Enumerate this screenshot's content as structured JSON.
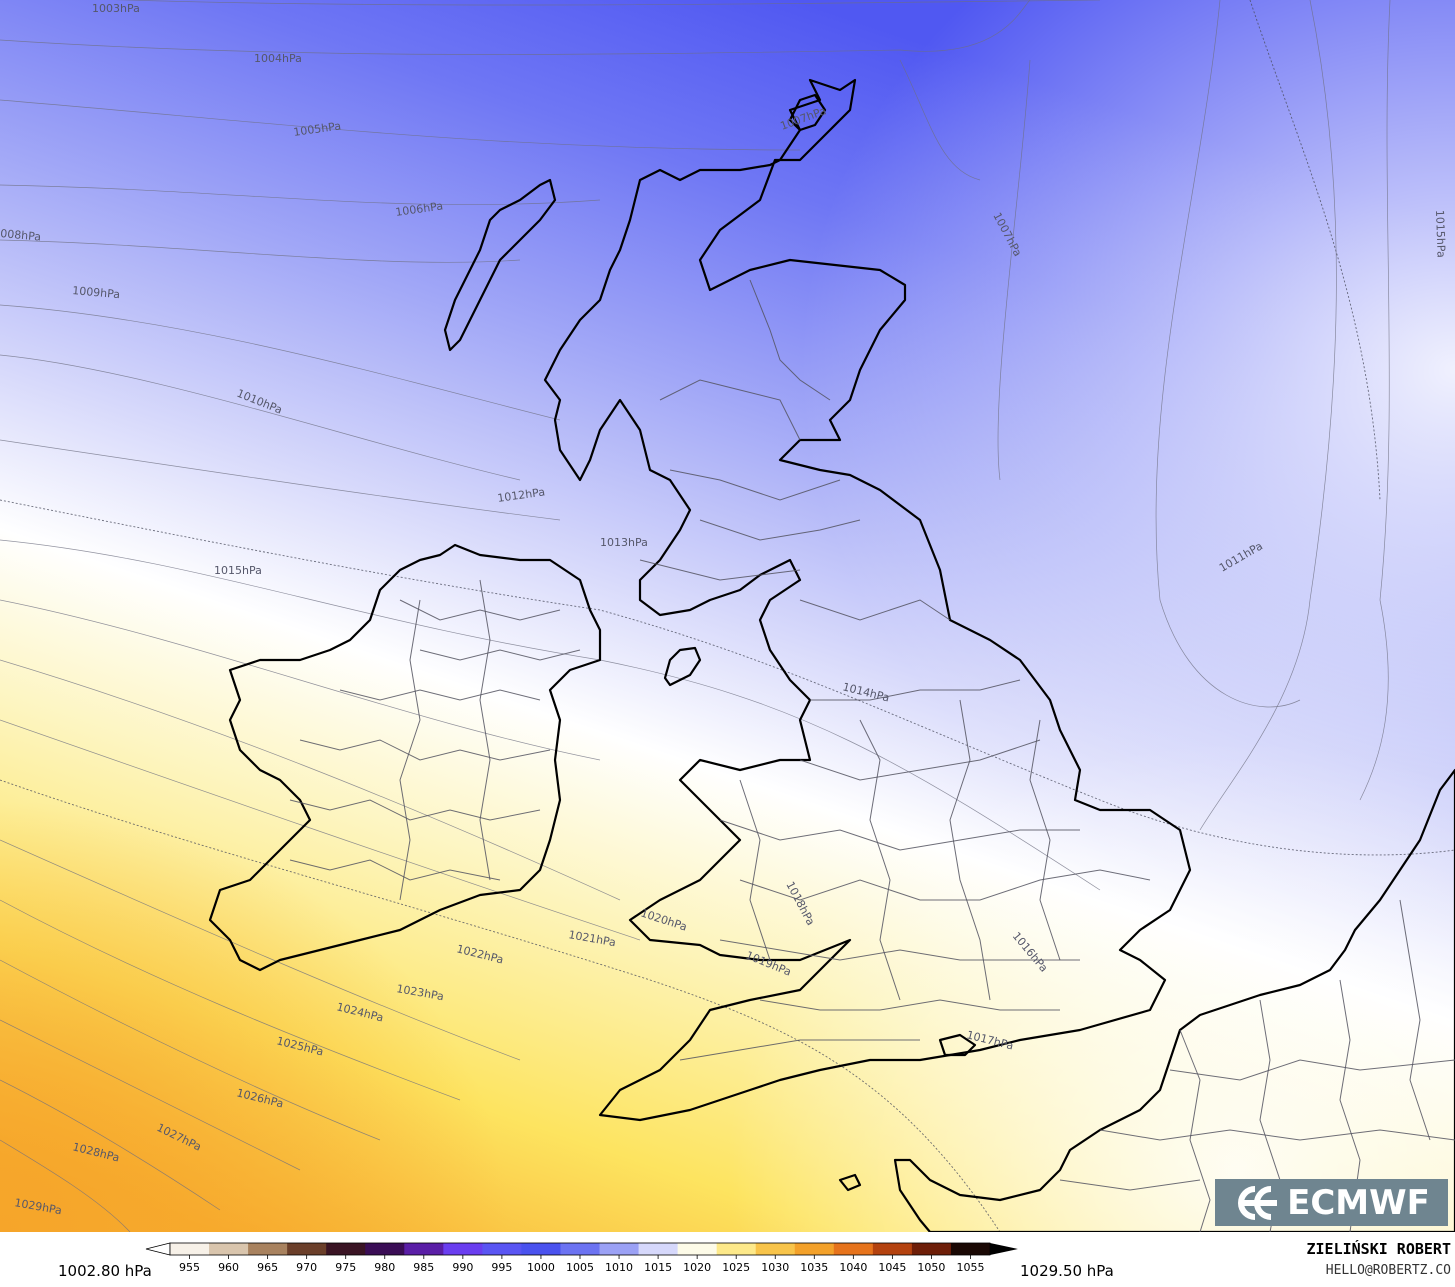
{
  "map": {
    "isobar_labels": [
      {
        "text": "1003hPa"
      },
      {
        "text": "1004hPa"
      },
      {
        "text": "1005hPa"
      },
      {
        "text": "1006hPa"
      },
      {
        "text": "1007hPa"
      },
      {
        "text": "1007hPa"
      },
      {
        "text": "008hPa"
      },
      {
        "text": "1009hPa"
      },
      {
        "text": "1010hPa"
      },
      {
        "text": "1011hPa"
      },
      {
        "text": "1012hPa"
      },
      {
        "text": "1013hPa"
      },
      {
        "text": "1014hPa"
      },
      {
        "text": "1015hPa"
      },
      {
        "text": "1015hPa"
      },
      {
        "text": "1016hPa"
      },
      {
        "text": "1017hPa"
      },
      {
        "text": "1018hPa"
      },
      {
        "text": "1019hPa"
      },
      {
        "text": "1020hPa"
      },
      {
        "text": "1021hPa"
      },
      {
        "text": "1022hPa"
      },
      {
        "text": "1023hPa"
      },
      {
        "text": "1024hPa"
      },
      {
        "text": "1025hPa"
      },
      {
        "text": "1026hPa"
      },
      {
        "text": "1027hPa"
      },
      {
        "text": "1028hPa"
      },
      {
        "text": "1029hPa"
      }
    ],
    "colors": {
      "low": "#5560f4",
      "mid_low": "#a8aef7",
      "neutral": "#ffffff",
      "mid_high": "#fdf2a0",
      "high": "#f8b030"
    }
  },
  "logo": {
    "text": "ECMWF",
    "icon": "ecmwf-logo-icon"
  },
  "colorbar": {
    "min_label": "1002.80 hPa",
    "max_label": "1029.50 hPa",
    "ticks": [
      "955",
      "960",
      "965",
      "970",
      "975",
      "980",
      "985",
      "990",
      "995",
      "1000",
      "1005",
      "1010",
      "1015",
      "1020",
      "1025",
      "1030",
      "1035",
      "1040",
      "1045",
      "1050",
      "1055"
    ],
    "colors": [
      "#f7f1e8",
      "#d9c5ad",
      "#a8825f",
      "#6b3f2a",
      "#3a1424",
      "#3a0d55",
      "#5a1ea6",
      "#6a3ef0",
      "#5a55f3",
      "#4a52ee",
      "#6c73f2",
      "#9ba1f5",
      "#d6d8fb",
      "#fdfbe8",
      "#fde98a",
      "#f8c44a",
      "#f3a12a",
      "#e6731c",
      "#b4420f",
      "#6e1e08",
      "#1a0804"
    ]
  },
  "author": {
    "name": "ZIELIŃSKI ROBERT",
    "email": "HELLO@ROBERTZ.CO"
  }
}
